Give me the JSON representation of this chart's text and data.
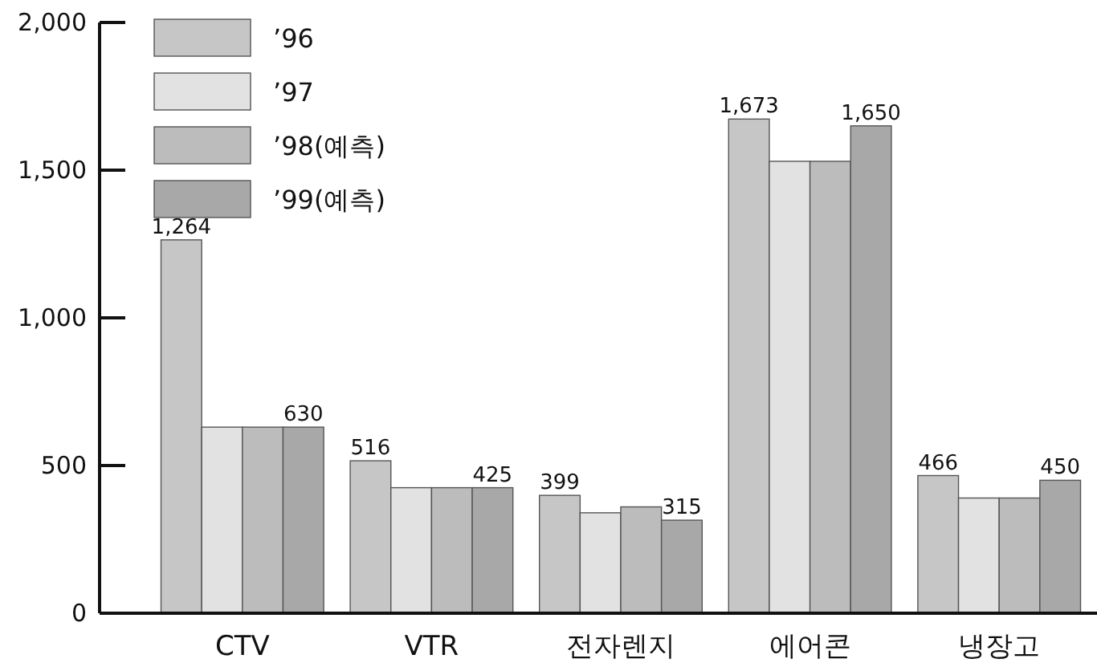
{
  "chart_data": {
    "type": "bar",
    "categories": [
      "CTV",
      "VTR",
      "전자렌지",
      "에어콘",
      "냉장고"
    ],
    "ylim": [
      0,
      2000
    ],
    "yticks": [
      0,
      500,
      {
        "value": 1000,
        "label": "1,000"
      },
      {
        "value": 1500,
        "label": "1,500"
      },
      {
        "value": 2000,
        "label": "2,000"
      }
    ],
    "legend": "top left",
    "series": [
      {
        "name": "’96",
        "color": "#c6c6c6",
        "values": [
          1264,
          516,
          399,
          1673,
          466
        ],
        "value_labels": [
          "1,264",
          "516",
          "399",
          "1,673",
          "466"
        ]
      },
      {
        "name": "’97",
        "color": "#e2e2e2",
        "values": [
          630,
          425,
          340,
          1530,
          390
        ]
      },
      {
        "name": "’98(예측)",
        "color": "#bcbcbc",
        "values": [
          630,
          425,
          360,
          1530,
          390
        ]
      },
      {
        "name": "’99(예측)",
        "color": "#a8a8a8",
        "values": [
          630,
          425,
          315,
          1650,
          450
        ],
        "value_labels": [
          "630",
          "425",
          "315",
          "1,650",
          "450"
        ]
      }
    ]
  }
}
